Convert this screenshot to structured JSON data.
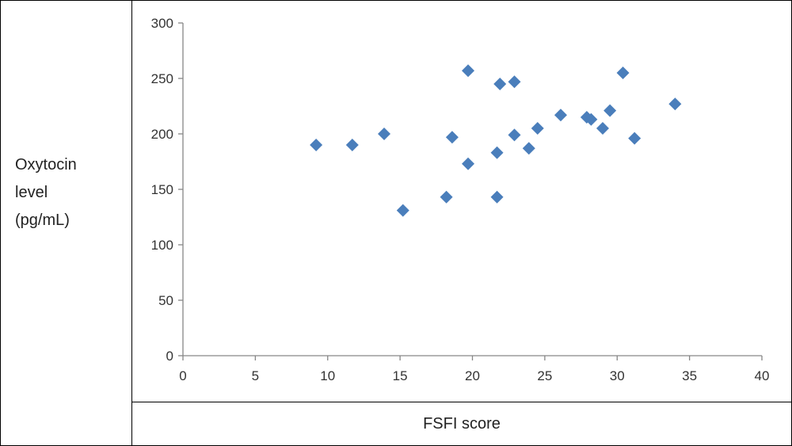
{
  "y_axis_title_lines": [
    "Oxytocin",
    "level",
    "(pg/mL)"
  ],
  "x_axis_title": "FSFI score",
  "colors": {
    "marker": "#4a7ebb",
    "axis": "#868686",
    "border": "#000000"
  },
  "chart_data": {
    "type": "scatter",
    "xlabel": "FSFI score",
    "ylabel": "Oxytocin level (pg/mL)",
    "xlim": [
      0,
      40
    ],
    "ylim": [
      0,
      300
    ],
    "x_ticks": [
      0,
      5,
      10,
      15,
      20,
      25,
      30,
      35,
      40
    ],
    "y_ticks": [
      0,
      50,
      100,
      150,
      200,
      250,
      300
    ],
    "grid": false,
    "legend": "none",
    "marker": "diamond",
    "points": [
      {
        "x": 9.2,
        "y": 190
      },
      {
        "x": 11.7,
        "y": 190
      },
      {
        "x": 13.9,
        "y": 200
      },
      {
        "x": 15.2,
        "y": 131
      },
      {
        "x": 18.2,
        "y": 143
      },
      {
        "x": 18.6,
        "y": 197
      },
      {
        "x": 19.7,
        "y": 257
      },
      {
        "x": 19.7,
        "y": 173
      },
      {
        "x": 21.7,
        "y": 183
      },
      {
        "x": 21.7,
        "y": 143
      },
      {
        "x": 21.9,
        "y": 245
      },
      {
        "x": 22.9,
        "y": 247
      },
      {
        "x": 22.9,
        "y": 199
      },
      {
        "x": 23.9,
        "y": 187
      },
      {
        "x": 24.5,
        "y": 205
      },
      {
        "x": 26.1,
        "y": 217
      },
      {
        "x": 27.9,
        "y": 215
      },
      {
        "x": 28.2,
        "y": 213
      },
      {
        "x": 29.0,
        "y": 205
      },
      {
        "x": 29.5,
        "y": 221
      },
      {
        "x": 30.4,
        "y": 255
      },
      {
        "x": 31.2,
        "y": 196
      },
      {
        "x": 34.0,
        "y": 227
      }
    ]
  }
}
